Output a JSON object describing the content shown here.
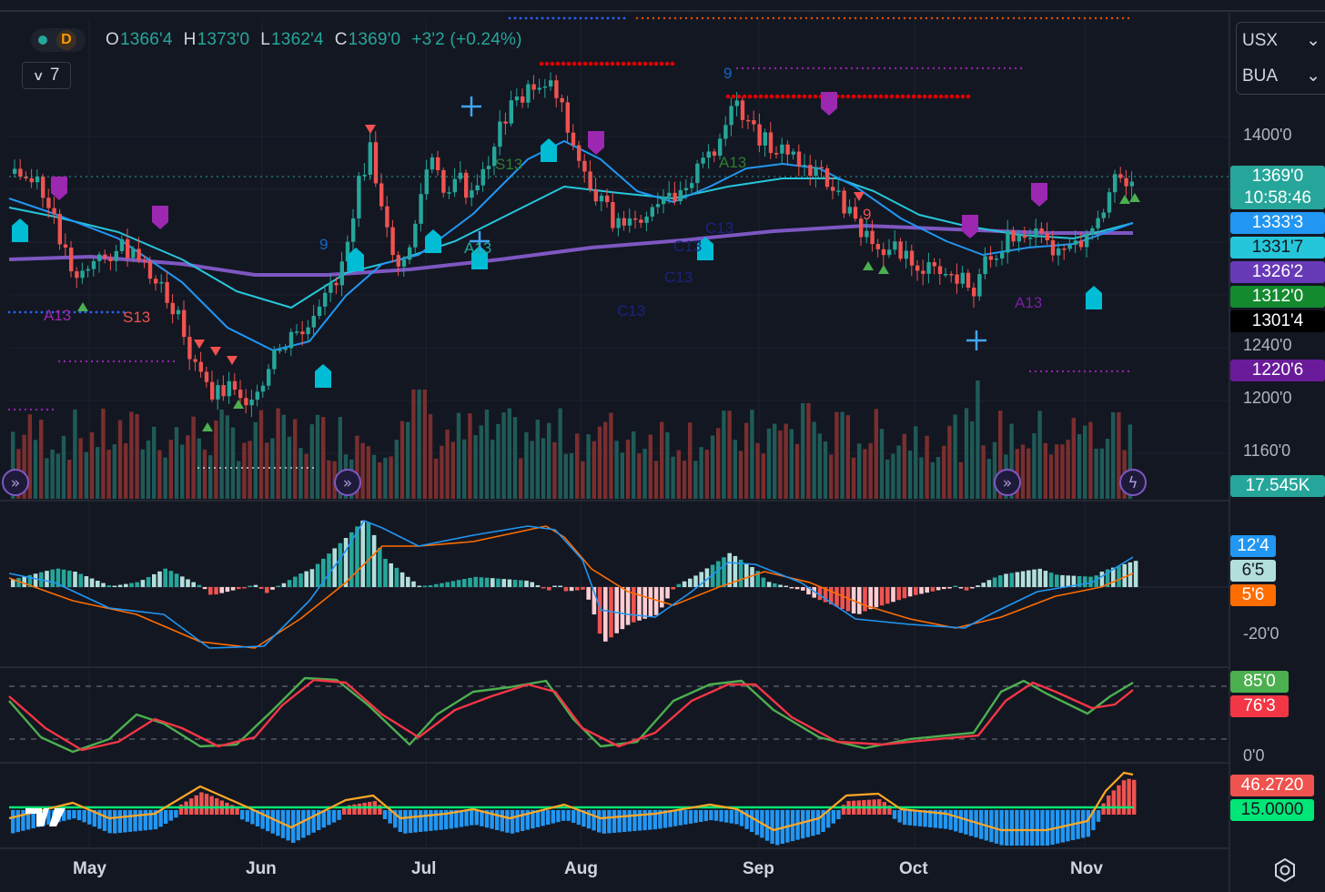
{
  "toolbar": {
    "interval": "D",
    "open_label": "O",
    "open": "1366'4",
    "high_label": "H",
    "high": "1373'0",
    "low_label": "L",
    "low": "1362'4",
    "close_label": "C",
    "close": "1369'0",
    "change": "+3'2 (+0.24%)",
    "indicators_count": "7"
  },
  "symbol_panel": {
    "symbol1": "USX",
    "symbol2": "BUA"
  },
  "price_axis": {
    "labels": [
      "1400'0",
      "1240'0",
      "1200'0",
      "1160'0",
      "-20'0",
      "0'0"
    ],
    "tags": [
      {
        "text": "1369'0",
        "color": "#26a69a"
      },
      {
        "text": "10:58:46",
        "color": "#26a69a"
      },
      {
        "text": "1333'3",
        "color": "#2196f3"
      },
      {
        "text": "1331'7",
        "color": "#26c6da"
      },
      {
        "text": "1326'2",
        "color": "#673ab7"
      },
      {
        "text": "1312'0",
        "color": "#138a2e"
      },
      {
        "text": "1301'4",
        "color": "#000000"
      },
      {
        "text": "1220'6",
        "color": "#6a1b9a"
      },
      {
        "text": "17.545K",
        "color": "#26a69a"
      },
      {
        "text": "12'4",
        "color": "#2196f3"
      },
      {
        "text": "6'5",
        "color": "#b2dfdb"
      },
      {
        "text": "5'6",
        "color": "#ff6d00"
      },
      {
        "text": "85'0",
        "color": "#4caf50"
      },
      {
        "text": "76'3",
        "color": "#f23645"
      },
      {
        "text": "46.2720",
        "color": "#ef5350"
      },
      {
        "text": "15.0000",
        "color": "#00e676"
      }
    ]
  },
  "time_axis": {
    "months": [
      "May",
      "Jun",
      "Jul",
      "Aug",
      "Sep",
      "Oct",
      "Nov"
    ]
  },
  "annotations": [
    "A13",
    "S13",
    "9",
    "S13",
    "A13",
    "C13",
    "C13",
    "C13",
    "C13",
    "A13",
    "9",
    "9",
    "A13"
  ],
  "colors": {
    "bg": "#131722",
    "up": "#26a69a",
    "down": "#ef5350",
    "ma_blue": "#2196f3",
    "ma_cyan": "#26c6da",
    "ma_purple": "#7e57c2",
    "macd": "#2196f3",
    "signal": "#ff6d00",
    "stoch_k": "#4caf50",
    "stoch_d": "#f23645"
  },
  "icons": [
    "settings-icon",
    "replay-icon",
    "lightning-icon",
    "chevron-down-icon"
  ]
}
